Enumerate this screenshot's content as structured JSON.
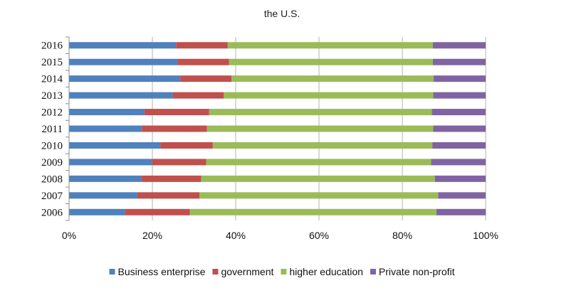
{
  "chart_data": {
    "type": "bar",
    "orientation": "horizontal",
    "stacked": "percent",
    "title": "the U.S.",
    "xlabel": "",
    "ylabel": "",
    "xlim": [
      0,
      100
    ],
    "xticks": [
      "0%",
      "20%",
      "40%",
      "60%",
      "80%",
      "100%"
    ],
    "grid": true,
    "legend_position": "bottom",
    "categories": [
      "2016",
      "2015",
      "2014",
      "2013",
      "2012",
      "2011",
      "2010",
      "2009",
      "2008",
      "2007",
      "2006"
    ],
    "series": [
      {
        "name": "Business enterprise",
        "color": "#4f81bd",
        "values": [
          25.7,
          26.0,
          26.7,
          24.9,
          18.1,
          17.5,
          21.9,
          19.9,
          17.3,
          16.4,
          13.4
        ]
      },
      {
        "name": "government",
        "color": "#c0504d",
        "values": [
          12.4,
          12.4,
          12.3,
          12.2,
          15.5,
          15.6,
          12.6,
          13.0,
          14.4,
          14.9,
          15.6
        ]
      },
      {
        "name": "higher education",
        "color": "#9bbb59",
        "values": [
          49.2,
          48.9,
          48.5,
          50.3,
          53.5,
          54.3,
          52.7,
          54.0,
          56.1,
          57.3,
          59.2
        ]
      },
      {
        "name": "Private non-profit",
        "color": "#8064a2",
        "values": [
          12.7,
          12.7,
          12.5,
          12.6,
          12.9,
          12.6,
          12.8,
          13.1,
          12.2,
          11.4,
          11.8
        ]
      }
    ]
  }
}
